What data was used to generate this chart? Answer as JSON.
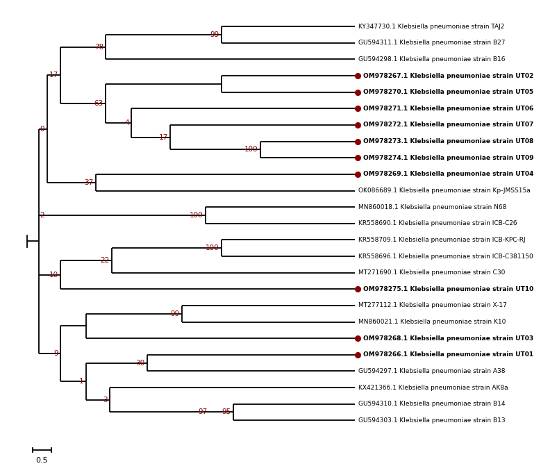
{
  "taxa": [
    "KY347730.1 Klebsiella pneumoniae strain TAJ2",
    "GU594311.1 Klebsiella pneumoniae strain B27",
    "GU594298.1 Klebsiella pneumoniae strain B16",
    "OM978267.1 Klebsiella pneumoniae strain UT02",
    "OM978270.1 Klebsiella pneumoniae strain UT05",
    "OM978271.1 Klebsiella pneumoniae strain UT06",
    "OM978272.1 Klebsiella pneumoniae strain UT07",
    "OM978273.1 Klebsiella pneumoniae strain UT08",
    "OM978274.1 Klebsiella pneumoniae strain UT09",
    "OM978269.1 Klebsiella pneumoniae strain UT04",
    "OK086689.1 Klebsiella pneumoniae strain Kp-JMSS15a",
    "MN860018.1 Klebsiella pneumoniae strain N68",
    "KR558690.1 Klebsiella pneumoniae strain ICB-C26",
    "KR558709.1 Klebsiella pneumoniae strain ICB-KPC-RJ",
    "KR558696.1 Klebsiella pneumoniae strain ICB-C381150",
    "MT271690.1 Klebsiella pneumoniae strain C30",
    "OM978275.1 Klebsiella pneumoniae strain UT10",
    "MT277112.1 Klebsiella pneumoniae strain X-17",
    "MN860021.1 Klebsiella pneumoniae strain K10",
    "OM978268.1 Klebsiella pneumoniae strain UT03",
    "OM978266.1 Klebsiella pneumoniae strain UT01",
    "GU594297.1 Klebsiella pneumoniae strain A38",
    "KX421366.1 Klebsiella pneumoniae strain AK8a",
    "GU594310.1 Klebsiella pneumoniae strain B14",
    "GU594303.1 Klebsiella pneumoniae strain B13"
  ],
  "is_study": [
    false,
    false,
    false,
    true,
    true,
    true,
    true,
    true,
    true,
    true,
    false,
    false,
    false,
    false,
    false,
    false,
    true,
    false,
    false,
    true,
    true,
    false,
    false,
    false,
    false
  ],
  "bold_taxa": [
    false,
    false,
    false,
    true,
    true,
    true,
    true,
    true,
    true,
    true,
    false,
    false,
    false,
    false,
    false,
    false,
    true,
    false,
    false,
    true,
    true,
    false,
    false,
    false,
    false
  ],
  "bootstrap_color": "#8B0000",
  "marker_color": "#8B0000",
  "scalebar_value": "0.5",
  "background_color": "#ffffff"
}
